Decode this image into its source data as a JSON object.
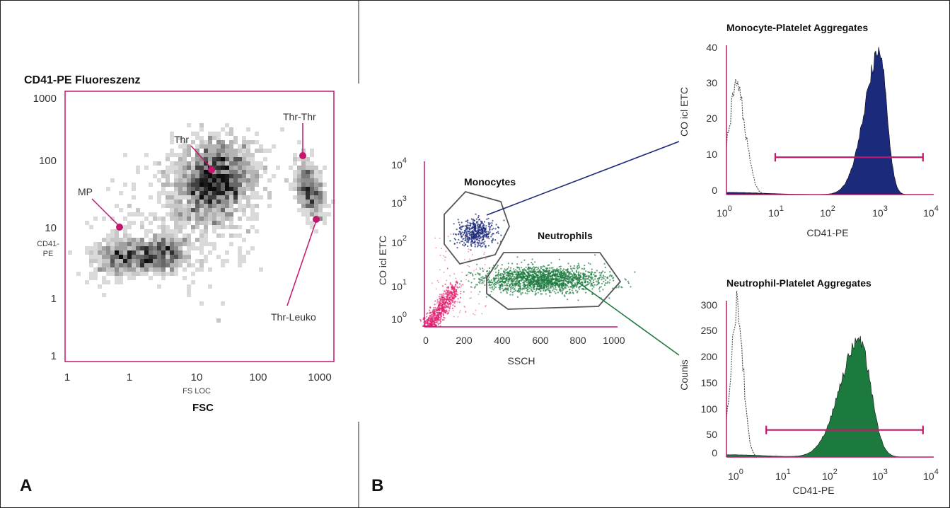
{
  "colors": {
    "frame": "#c2176d",
    "gate": "#555555",
    "monocyte": "#1b2a7a",
    "neutrophil": "#1d7a3e",
    "platelet": "#e0206e",
    "density": "#000000"
  },
  "chart_data": [
    {
      "panel": "A",
      "type": "heatmap",
      "title": "CD41-PE Fluoreszenz",
      "xlabel_small": "FS LOC",
      "xlabel": "FSC",
      "ylabel_small": "CD41-\nPE",
      "x_ticks": [
        "1",
        "1",
        "10",
        "100",
        "1000"
      ],
      "y_ticks": [
        "1000",
        "100",
        "10",
        "1",
        "1"
      ],
      "xlim": [
        0.1,
        1000
      ],
      "ylim": [
        0.1,
        1000
      ],
      "scale": "log",
      "populations": [
        {
          "label": "Thr",
          "x": 17,
          "y": 50
        },
        {
          "label": "Thr-Thr",
          "x": 440,
          "y": 35
        },
        {
          "label": "MP",
          "x": 0.7,
          "y": 3.5
        },
        {
          "label": "Thr-Leuko",
          "x": 600,
          "y": 14
        }
      ],
      "annotations": [
        {
          "text": "MP",
          "anchor_x": 0.7,
          "anchor_y": 9
        },
        {
          "text": "Thr",
          "anchor_x": 17,
          "anchor_y": 70
        },
        {
          "text": "Thr-Thr",
          "anchor_x": 470,
          "anchor_y": 110
        },
        {
          "text": "Thr-Leuko",
          "anchor_x": 800,
          "anchor_y": 14
        }
      ]
    },
    {
      "panel": "B",
      "type": "scatter",
      "xlabel": "SSCH",
      "ylabel": "CO icl ETC",
      "x_ticks": [
        "0",
        "200",
        "400",
        "600",
        "800",
        "1000"
      ],
      "xlim": [
        0,
        1000
      ],
      "ylim_log": [
        1,
        10000
      ],
      "y_ticks": [
        {
          "base": "10",
          "exp": "4"
        },
        {
          "base": "10",
          "exp": "3"
        },
        {
          "base": "10",
          "exp": "2"
        },
        {
          "base": "10",
          "exp": "1"
        },
        {
          "base": "10",
          "exp": "0"
        }
      ],
      "gates": [
        {
          "label": "Monocytes",
          "series": "monocytes"
        },
        {
          "label": "Neutrophils",
          "series": "neutrophils"
        }
      ],
      "series": [
        {
          "name": "Monocytes",
          "x_center": 270,
          "y_center": 220
        },
        {
          "name": "Neutrophils",
          "x_center": 620,
          "y_center": 15
        },
        {
          "name": "",
          "x_center": 70,
          "y_center": 2
        }
      ]
    },
    {
      "panel": "B",
      "type": "area",
      "title": "Monocyte-Platelet Aggregates",
      "xlabel": "CD41-PE",
      "ylabel": "CO icl ETC",
      "xlim_log": [
        1,
        10000
      ],
      "ylim": [
        0,
        40
      ],
      "y_ticks": [
        "40",
        "30",
        "20",
        "10",
        "0"
      ],
      "x_ticks": [
        {
          "base": "10",
          "exp": "0"
        },
        {
          "base": "10",
          "exp": "1"
        },
        {
          "base": "10",
          "exp": "2"
        },
        {
          "base": "10",
          "exp": "3"
        },
        {
          "base": "10",
          "exp": "4"
        }
      ],
      "control_peak": {
        "x": 1.6,
        "y": 28
      },
      "stained_peak": {
        "x": 1000,
        "y": 38
      },
      "marker_range": [
        9,
        7000
      ],
      "marker_y": 10
    },
    {
      "panel": "B",
      "type": "area",
      "title": "Neutrophil-Platelet Aggregates",
      "xlabel": "CD41-PE",
      "ylabel": "Counis",
      "xlim_log": [
        1,
        10000
      ],
      "ylim": [
        0,
        300
      ],
      "y_ticks": [
        "300",
        "250",
        "200",
        "150",
        "100",
        "50",
        "0"
      ],
      "x_ticks": [
        {
          "base": "10",
          "exp": "0"
        },
        {
          "base": "10",
          "exp": "1"
        },
        {
          "base": "10",
          "exp": "2"
        },
        {
          "base": "10",
          "exp": "3"
        },
        {
          "base": "10",
          "exp": "4"
        }
      ],
      "control_peak": {
        "x": 1.6,
        "y": 290
      },
      "stained_peak": {
        "x": 400,
        "y": 225
      },
      "marker_range": [
        6,
        7000
      ],
      "marker_y": 52
    }
  ],
  "panel_labels": {
    "a": "A",
    "b": "B"
  }
}
